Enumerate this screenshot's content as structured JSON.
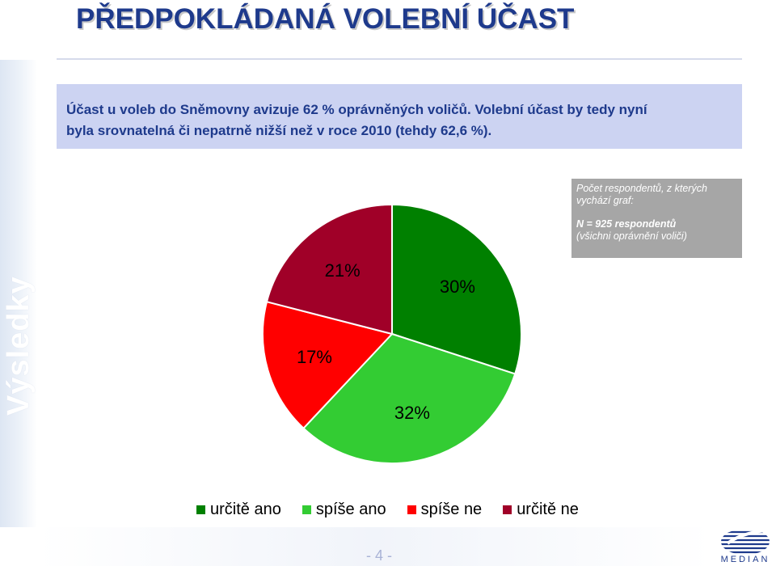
{
  "title": "PŘEDPOKLÁDANÁ VOLEBNÍ ÚČAST",
  "sidebar_label": "Výsledky",
  "intro": {
    "line1": "Účast u voleb do Sněmovny avizuje 62 % oprávněných voličů. Volební účast by tedy nyní",
    "line2": "byla srovnatelná či nepatrně nižší než v roce 2010 (tehdy 62,6 %)."
  },
  "note": {
    "line1": "Počet respondentů, z kterých vychází graf:",
    "line2": "N = 925 respondentů",
    "line3": "(všichni oprávnění voliči)"
  },
  "chart_data": {
    "type": "pie",
    "categories": [
      "určitě ano",
      "spíše ano",
      "spíše ne",
      "určitě ne"
    ],
    "values": [
      30,
      32,
      17,
      21
    ],
    "data_labels": [
      "30%",
      "32%",
      "17%",
      "21%"
    ],
    "colors": [
      "#008000",
      "#33cc33",
      "#ff0000",
      "#a00028"
    ],
    "legend_position": "bottom"
  },
  "page_number": "- 4 -",
  "logo_text": "MEDIAN"
}
